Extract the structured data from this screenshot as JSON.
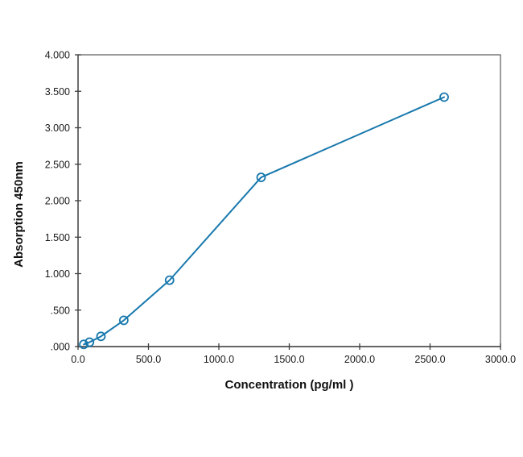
{
  "chart_data": {
    "type": "line",
    "title": "",
    "xlabel": "Concentration (pg/ml )",
    "ylabel": "Absorption 450nm",
    "xlim": [
      0,
      3000
    ],
    "ylim": [
      0,
      4.0
    ],
    "grid": false,
    "legend": false,
    "xticks": [
      0,
      500,
      1000,
      1500,
      2000,
      2500,
      3000
    ],
    "xtick_labels": [
      "0.0",
      "500.0",
      "1000.0",
      "1500.0",
      "2000.0",
      "2500.0",
      "3000.0"
    ],
    "yticks": [
      0,
      0.5,
      1.0,
      1.5,
      2.0,
      2.5,
      3.0,
      3.5,
      4.0
    ],
    "ytick_labels": [
      ".000",
      ".500",
      "1.000",
      "1.500",
      "2.000",
      "2.500",
      "3.000",
      "3.500",
      "4.000"
    ],
    "series": [
      {
        "marker": "open-circle",
        "color": "#1878ad",
        "points": [
          {
            "x": 40.6,
            "y": 0.03
          },
          {
            "x": 81.3,
            "y": 0.06
          },
          {
            "x": 162.5,
            "y": 0.14
          },
          {
            "x": 325,
            "y": 0.36
          },
          {
            "x": 650,
            "y": 0.91
          },
          {
            "x": 1300,
            "y": 2.32
          },
          {
            "x": 2600,
            "y": 3.42
          }
        ]
      }
    ]
  },
  "style": {
    "background_color": "#ffffff",
    "frame_color": "#595959",
    "axis_color": "#3f3f3f",
    "tick_label_color": "#1a1a1a",
    "axis_title_color": "#111111",
    "line_color": "#1878ad"
  }
}
